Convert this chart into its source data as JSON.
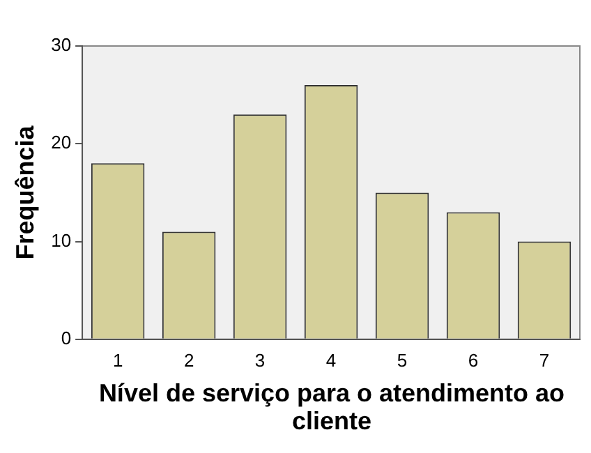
{
  "chart_data": {
    "type": "bar",
    "xlabel": "Nível de serviço para o atendimento ao cliente",
    "ylabel": "Frequência",
    "categories": [
      "1",
      "2",
      "3",
      "4",
      "5",
      "6",
      "7"
    ],
    "values": [
      18,
      11,
      23,
      26,
      15,
      13,
      10
    ],
    "color": "#d5d09a",
    "ylim": [
      0,
      30
    ],
    "yticks": [
      0,
      10,
      20,
      30
    ],
    "grid": false,
    "legend": false
  }
}
